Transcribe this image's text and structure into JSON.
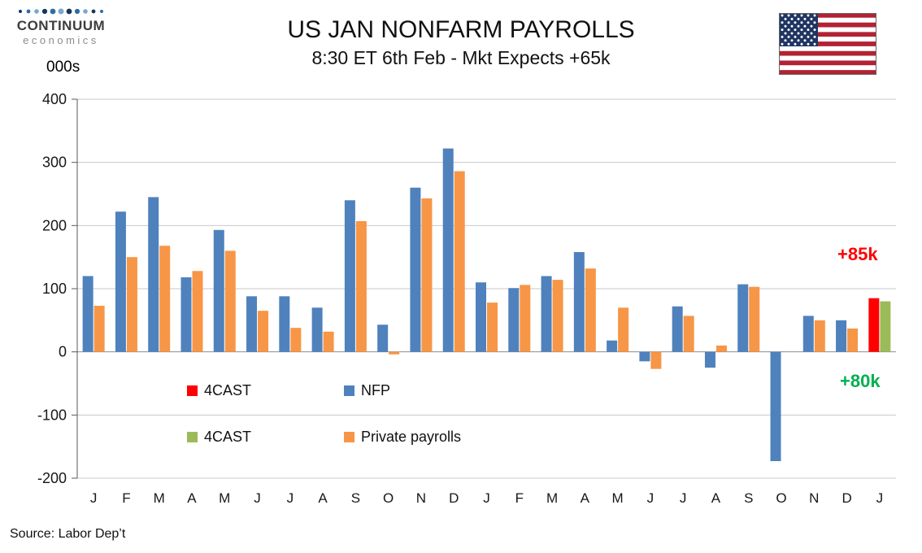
{
  "header": {
    "logo_line1": "CONTINUUM",
    "logo_line2": "economics"
  },
  "chart_data": {
    "type": "bar",
    "title": "US JAN NONFARM PAYROLLS",
    "subtitle": "8:30 ET 6th Feb - Mkt Expects +65k",
    "units_label": "000s",
    "ylim": [
      -200,
      400
    ],
    "yticks": [
      400,
      300,
      200,
      100,
      0,
      -100,
      -200
    ],
    "grid": true,
    "legend_position": "inside-lower-left",
    "categories": [
      "J",
      "F",
      "M",
      "A",
      "M",
      "J",
      "J",
      "A",
      "S",
      "O",
      "N",
      "D",
      "J",
      "F",
      "M",
      "A",
      "M",
      "J",
      "J",
      "A",
      "S",
      "O",
      "N",
      "D",
      "J"
    ],
    "series": [
      {
        "name": "NFP",
        "color": "#4F81BD",
        "forecast_color": "#FF0000",
        "forecast_index": 24,
        "values": [
          120,
          222,
          245,
          118,
          193,
          88,
          88,
          70,
          240,
          43,
          260,
          322,
          110,
          101,
          120,
          158,
          18,
          -15,
          72,
          -25,
          107,
          -173,
          57,
          50,
          85
        ]
      },
      {
        "name": "Private payrolls",
        "color": "#F79646",
        "forecast_color": "#9BBB59",
        "forecast_index": 24,
        "values": [
          73,
          150,
          168,
          128,
          160,
          65,
          38,
          32,
          207,
          -4,
          243,
          286,
          78,
          106,
          114,
          132,
          70,
          -27,
          57,
          10,
          103,
          0,
          50,
          37,
          80
        ]
      }
    ],
    "legend": [
      {
        "label": "4CAST",
        "color": "#FF0000"
      },
      {
        "label": "NFP",
        "color": "#4F81BD"
      },
      {
        "label": "4CAST",
        "color": "#9BBB59"
      },
      {
        "label": "Private payrolls",
        "color": "#F79646"
      }
    ],
    "annotations": [
      {
        "text": "+85k",
        "color": "#FF0000"
      },
      {
        "text": "+80k",
        "color": "#00B050"
      }
    ]
  },
  "footer": {
    "source": "Source: Labor Dep’t"
  }
}
